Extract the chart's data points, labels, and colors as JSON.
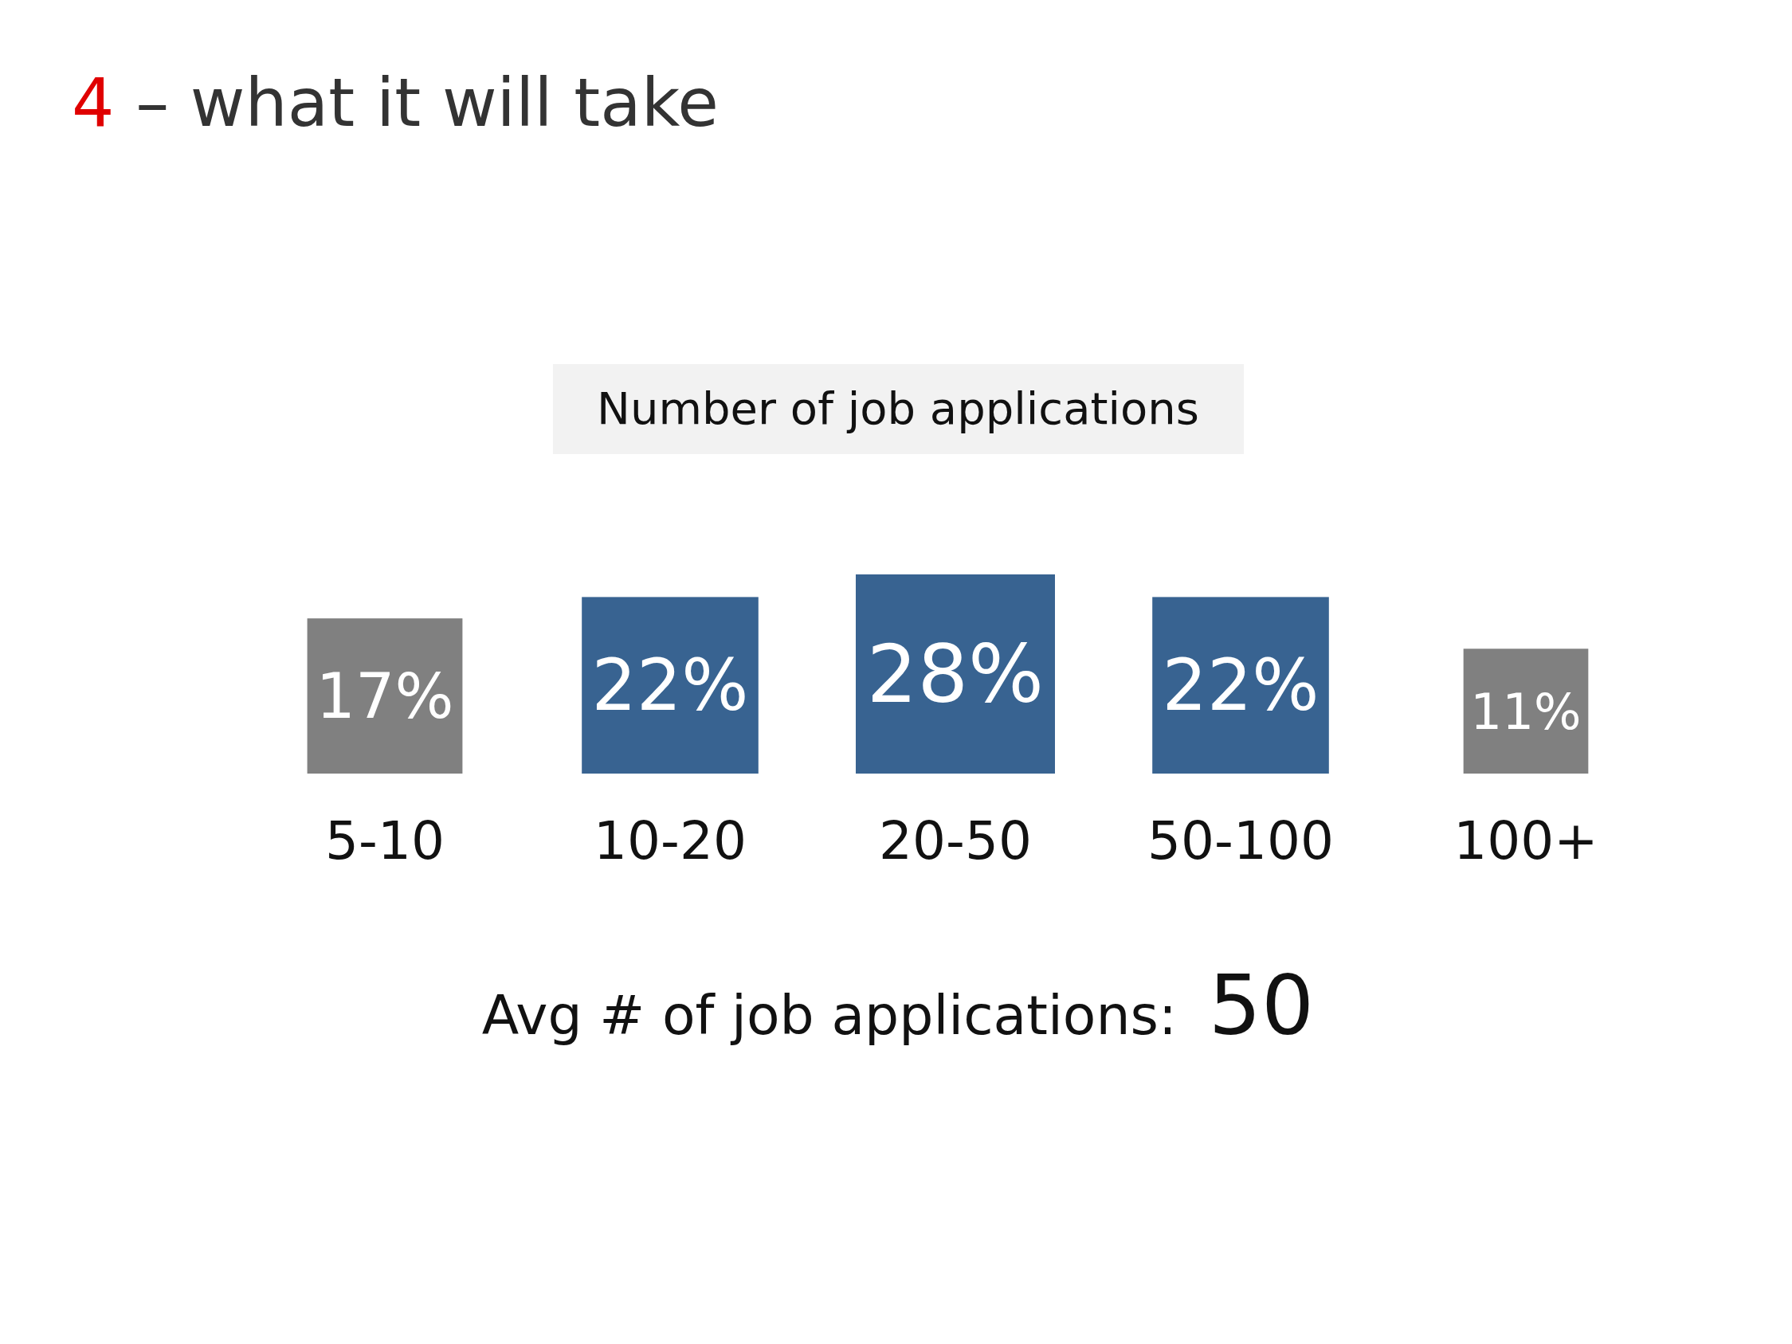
{
  "chart_data": {
    "type": "other",
    "title": "4 – what it will take",
    "subtitle": "Number of job applications",
    "categories": [
      "5-10",
      "10-20",
      "20-50",
      "50-100",
      "100+"
    ],
    "values": [
      17,
      22,
      28,
      22,
      11
    ],
    "colors": [
      "#808080",
      "#386391",
      "#386391",
      "#386391",
      "#808080"
    ],
    "value_labels": [
      "17%",
      "22%",
      "28%",
      "22%",
      "11%"
    ],
    "annotations": [
      "Avg # of job applications:",
      "50"
    ]
  }
}
